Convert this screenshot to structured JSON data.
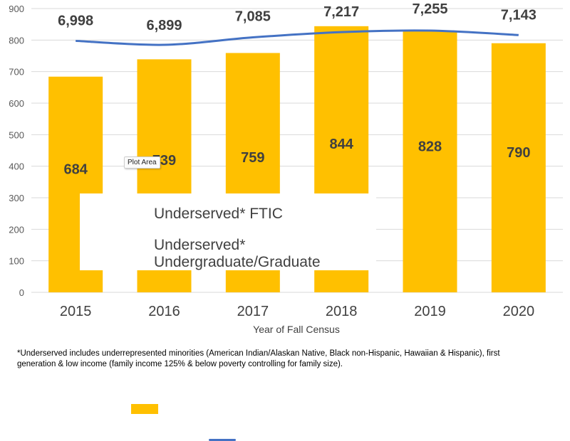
{
  "chart_data": {
    "type": "bar",
    "categories": [
      "2015",
      "2016",
      "2017",
      "2018",
      "2019",
      "2020"
    ],
    "series": [
      {
        "name": "Underserved* FTIC",
        "type": "bar",
        "values": [
          684,
          739,
          759,
          844,
          828,
          790
        ],
        "color": "#FFC000"
      },
      {
        "name": "Underserved* Undergraduate/Graduate",
        "type": "line",
        "values": [
          6998,
          6899,
          7085,
          7217,
          7255,
          7143
        ],
        "value_labels": [
          "6,998",
          "6,899",
          "7,085",
          "7,217",
          "7,255",
          "7,143"
        ],
        "color": "#4472C4"
      }
    ],
    "xlabel": "Year of Fall Census",
    "ylabel": "",
    "ylim": [
      0,
      900
    ],
    "yticks": [
      0,
      100,
      200,
      300,
      400,
      500,
      600,
      700,
      800,
      900
    ],
    "grid": true,
    "legend": {
      "bar_label": "Underserved* FTIC",
      "line_label_1": "Underserved*",
      "line_label_2": "Undergraduate/Graduate"
    }
  },
  "tooltip": "Plot Area",
  "footnote_line1": "*Underserved includes underrepresented minorities (American Indian/Alaskan Native, Black non-Hispanic, Hawaiian & Hispanic), first",
  "footnote_line2": "generation & low income (family income 125% & below poverty controlling for family size)."
}
